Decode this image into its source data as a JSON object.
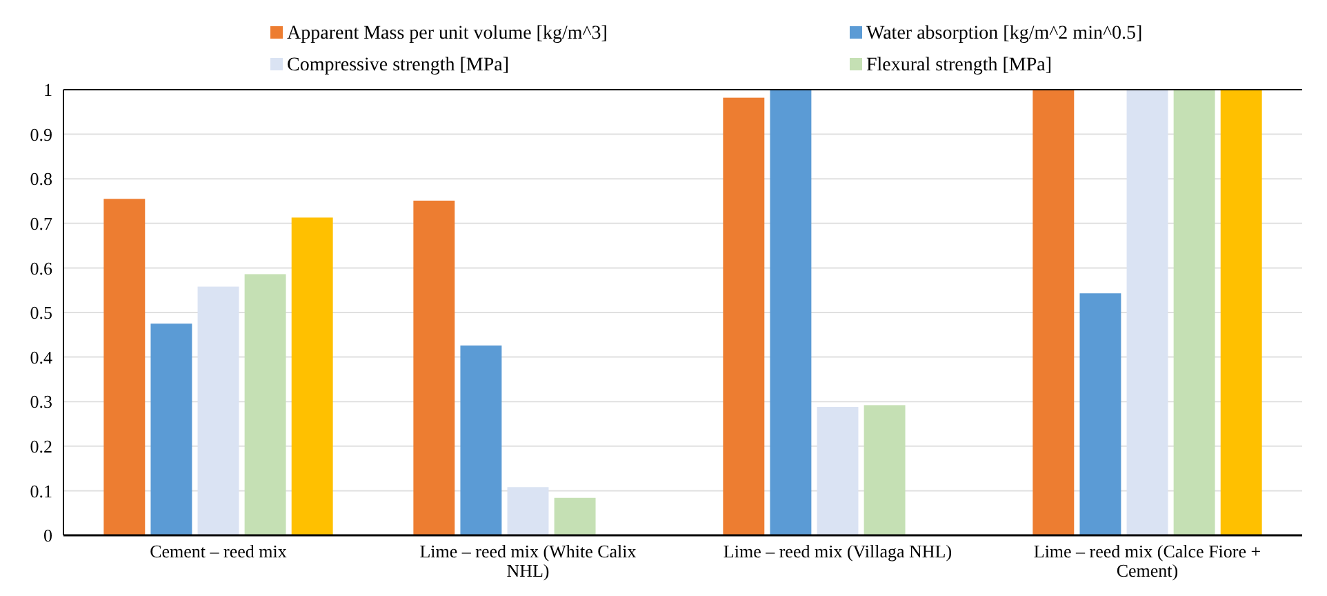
{
  "chart_data": {
    "type": "bar",
    "categories": [
      "Cement – reed mix",
      "Lime – reed mix  (White  Calix NHL)",
      "Lime – reed mix  (Villaga  NHL)",
      "Lime – reed mix  (Calce Fiore + Cement)"
    ],
    "series": [
      {
        "name": "Apparent Mass per unit volume [kg/m^3]",
        "color": "#ed7d31",
        "values": [
          0.755,
          0.751,
          0.982,
          1
        ]
      },
      {
        "name": "Water absorption [kg/m^2 min^0.5]",
        "color": "#5b9bd5",
        "values": [
          0.475,
          0.426,
          1,
          0.543
        ]
      },
      {
        "name": "Compressive strength [MPa]",
        "color": "#dae3f3",
        "values": [
          0.558,
          0.108,
          0.288,
          1
        ]
      },
      {
        "name": "Flexural strength [MPa]",
        "color": "#c5e0b4",
        "values": [
          0.586,
          0.084,
          0.292,
          1
        ]
      },
      {
        "color": "#ffc000",
        "values": [
          0.713,
          null,
          null,
          1
        ]
      }
    ],
    "ylim": [
      0,
      1
    ],
    "yticks": [
      0,
      0.1,
      0.2,
      0.3,
      0.4,
      0.5,
      0.6,
      0.7,
      0.8,
      0.9,
      1
    ],
    "grid": "y",
    "legend": "top"
  }
}
